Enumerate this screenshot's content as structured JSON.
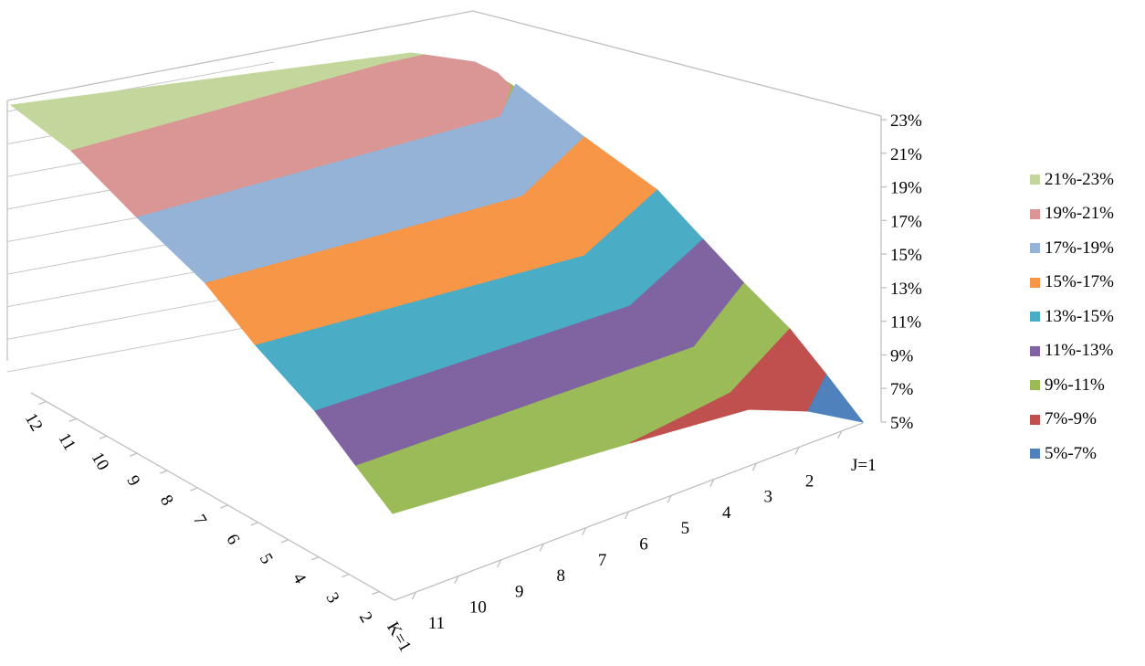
{
  "chart_data": {
    "type": "surface",
    "title": "",
    "z_axis": {
      "ticks": [
        "23%",
        "21%",
        "19%",
        "17%",
        "15%",
        "13%",
        "11%",
        "9%",
        "7%",
        "5%"
      ],
      "range": [
        5,
        23
      ]
    },
    "j_axis": {
      "ticks": [
        "J=1",
        "2",
        "3",
        "4",
        "5",
        "6",
        "7",
        "8",
        "9",
        "10",
        "11"
      ]
    },
    "k_axis": {
      "ticks": [
        "12",
        "11",
        "10",
        "9",
        "8",
        "7",
        "6",
        "5",
        "4",
        "3",
        "2",
        "K=1"
      ]
    },
    "legend": {
      "position": "right",
      "entries": [
        {
          "label": "21%-23%",
          "color": "#c3d69b"
        },
        {
          "label": "19%-21%",
          "color": "#d99694"
        },
        {
          "label": "17%-19%",
          "color": "#95b3d7"
        },
        {
          "label": "15%-17%",
          "color": "#f79646"
        },
        {
          "label": "13%-15%",
          "color": "#4bacc6"
        },
        {
          "label": "11%-13%",
          "color": "#8064a2"
        },
        {
          "label": "9%-11%",
          "color": "#9bbb59"
        },
        {
          "label": "7%-9%",
          "color": "#c0504d"
        },
        {
          "label": "5%-7%",
          "color": "#4f81bd"
        }
      ]
    }
  }
}
